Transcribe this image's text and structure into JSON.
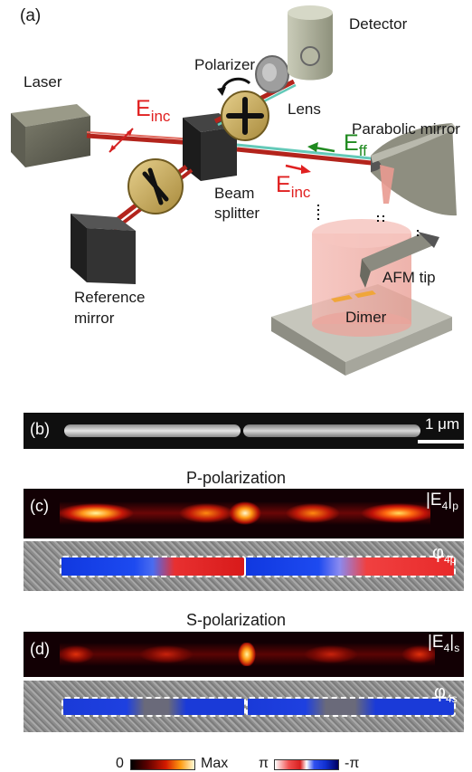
{
  "panel_a": {
    "tag": "(a)",
    "labels": {
      "laser": "Laser",
      "detector": "Detector",
      "polarizer": "Polarizer",
      "lens": "Lens",
      "parabolic_mirror": "Parabolic mirror",
      "beam_splitter_1": "Beam",
      "beam_splitter_2": "splitter",
      "reference_mirror_1": "Reference",
      "reference_mirror_2": "mirror",
      "afm_tip": "AFM tip",
      "dimer": "Dimer",
      "e_inc": "E",
      "e_inc_sub": "inc",
      "e_ff": "E",
      "e_ff_sub": "ff"
    },
    "colors": {
      "e_inc": "#e02020",
      "e_ff": "#1f8a1f"
    }
  },
  "panel_b": {
    "tag": "(b)",
    "scale_bar": "1 μm"
  },
  "panel_c": {
    "tag": "(c)",
    "title": "P-polarization",
    "amp_label": "|E",
    "amp_sub": "4",
    "amp_suffix": "|",
    "amp_subscript2": "p",
    "phase_label": "φ",
    "phase_sub": "4p"
  },
  "panel_d": {
    "tag": "(d)",
    "title": "S-polarization",
    "amp_label": "|E",
    "amp_sub": "4",
    "amp_suffix": "|",
    "amp_subscript2": "s",
    "phase_label": "φ",
    "phase_sub": "4s"
  },
  "colorbars": {
    "amp_min": "0",
    "amp_max": "Max",
    "phase_min": "π",
    "phase_max": "-π"
  }
}
